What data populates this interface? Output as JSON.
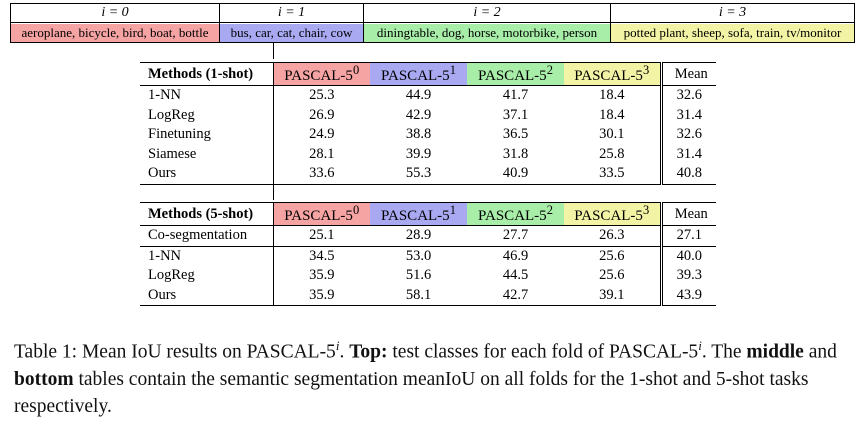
{
  "folds": {
    "headers": [
      "i = 0",
      "i = 1",
      "i = 2",
      "i = 3"
    ],
    "classes": [
      "aeroplane, bicycle, bird, boat, bottle",
      "bus, car, cat, chair, cow",
      "diningtable, dog, horse, motorbike, person",
      "potted plant, sheep, sofa, train, tv/monitor"
    ],
    "colors": [
      "#f5a3a3",
      "#a9a9f2",
      "#a8eea8",
      "#f3f3a6"
    ]
  },
  "table_1shot": {
    "method_header": "Methods (1-shot)",
    "col_headers": [
      "PASCAL-5",
      "PASCAL-5",
      "PASCAL-5",
      "PASCAL-5",
      "Mean"
    ],
    "col_sups": [
      "0",
      "1",
      "2",
      "3"
    ],
    "rows": [
      {
        "method": "1-NN",
        "values": [
          "25.3",
          "44.9",
          "41.7",
          "18.4",
          "32.6"
        ],
        "bold": [
          false,
          false,
          true,
          false,
          false
        ]
      },
      {
        "method": "LogReg",
        "values": [
          "26.9",
          "42.9",
          "37.1",
          "18.4",
          "31.4"
        ],
        "bold": [
          false,
          false,
          false,
          false,
          false
        ]
      },
      {
        "method": "Finetuning",
        "values": [
          "24.9",
          "38.8",
          "36.5",
          "30.1",
          "32.6"
        ],
        "bold": [
          false,
          false,
          false,
          false,
          false
        ]
      },
      {
        "method": "Siamese",
        "values": [
          "28.1",
          "39.9",
          "31.8",
          "25.8",
          "31.4"
        ],
        "bold": [
          false,
          false,
          false,
          false,
          false
        ]
      },
      {
        "method": "Ours",
        "values": [
          "33.6",
          "55.3",
          "40.9",
          "33.5",
          "40.8"
        ],
        "bold": [
          true,
          true,
          false,
          true,
          true
        ]
      }
    ]
  },
  "table_5shot": {
    "method_header": "Methods (5-shot)",
    "col_headers": [
      "PASCAL-5",
      "PASCAL-5",
      "PASCAL-5",
      "PASCAL-5",
      "Mean"
    ],
    "col_sups": [
      "0",
      "1",
      "2",
      "3"
    ],
    "rows": [
      {
        "method": "Co-segmentation",
        "values": [
          "25.1",
          "28.9",
          "27.7",
          "26.3",
          "27.1"
        ],
        "bold": [
          false,
          false,
          false,
          false,
          false
        ]
      },
      {
        "method": "1-NN",
        "values": [
          "34.5",
          "53.0",
          "46.9",
          "25.6",
          "40.0"
        ],
        "bold": [
          false,
          false,
          true,
          false,
          false
        ]
      },
      {
        "method": "LogReg",
        "values": [
          "35.9",
          "51.6",
          "44.5",
          "25.6",
          "39.3"
        ],
        "bold": [
          true,
          false,
          false,
          false,
          false
        ]
      },
      {
        "method": "Ours",
        "values": [
          "35.9",
          "58.1",
          "42.7",
          "39.1",
          "43.9"
        ],
        "bold": [
          true,
          true,
          false,
          true,
          true
        ]
      }
    ]
  },
  "caption": {
    "prefix": "Table 1: Mean IoU results on PASCAL-5",
    "sup_i": "i",
    "dot": ". ",
    "top_label": "Top:",
    "top_text": " test classes for each fold of PASCAL-5",
    "sup_i2": "i",
    "dot2": ".",
    "line2_a": " The ",
    "middle_label": "middle",
    "line2_b": " and ",
    "bottom_label": "bottom",
    "line2_c": " tables contain the semantic segmentation meanIoU on all folds for the 1-shot and 5-shot tasks respectively."
  }
}
